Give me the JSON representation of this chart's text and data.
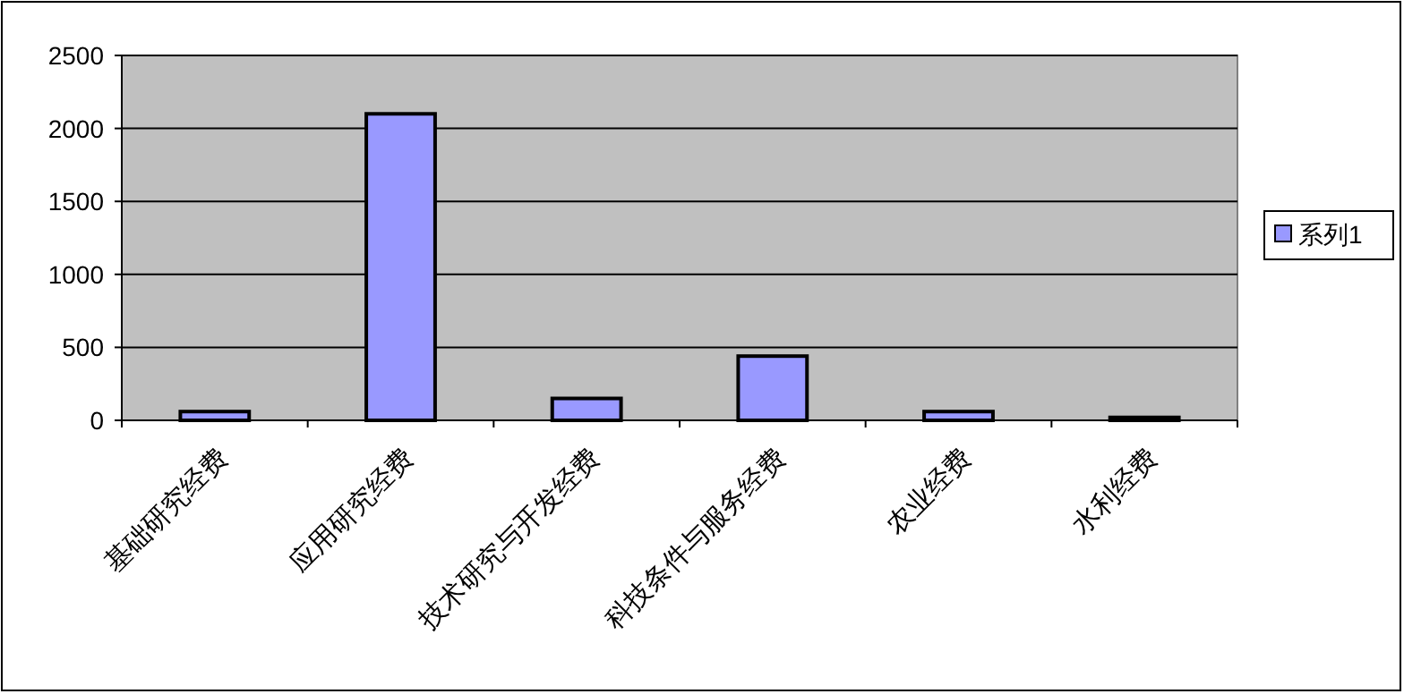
{
  "chart_data": {
    "type": "bar",
    "categories": [
      "基础研究经费",
      "应用研究经费",
      "技术研究与开发经费",
      "科技条件与服务经费",
      "农业经费",
      "水利经费"
    ],
    "series": [
      {
        "name": "系列1",
        "color": "#9999ff",
        "values": [
          60,
          2100,
          150,
          440,
          60,
          20
        ]
      }
    ],
    "ylim": [
      0,
      2500
    ],
    "yticks": [
      0,
      500,
      1000,
      1500,
      2000,
      2500
    ],
    "grid": "y",
    "legend": "right"
  }
}
